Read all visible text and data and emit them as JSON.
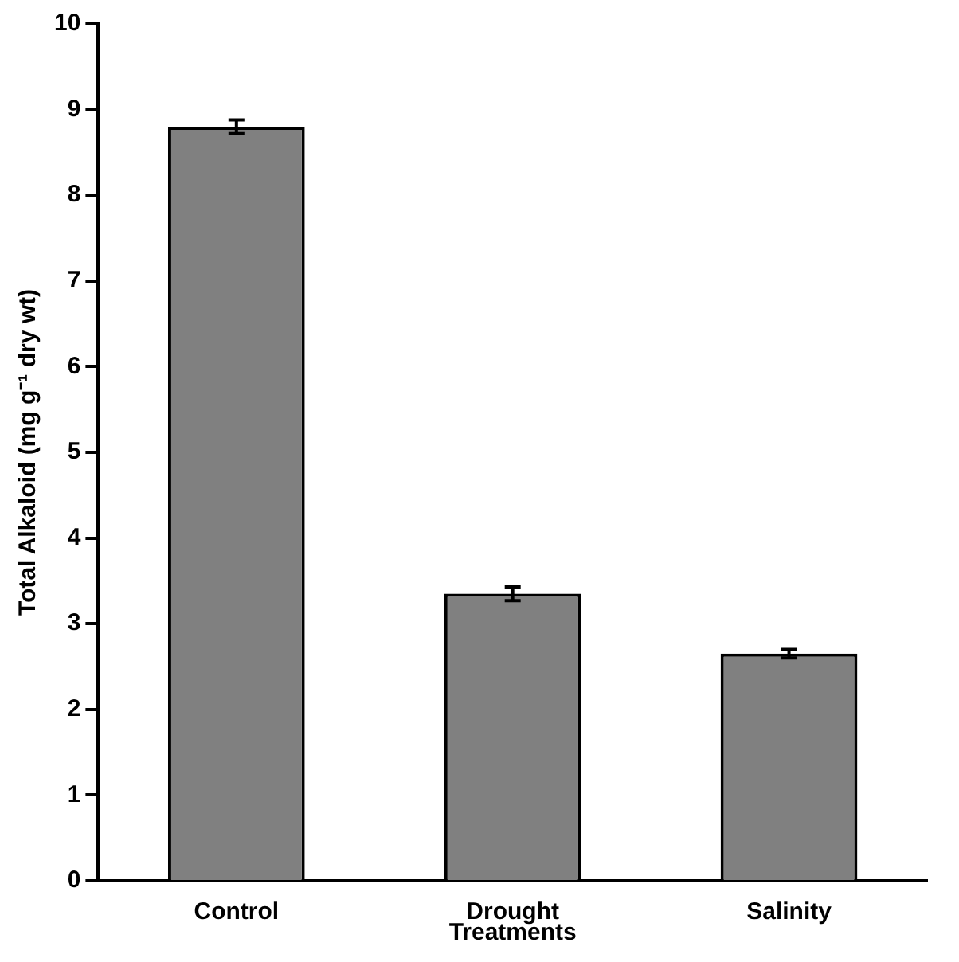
{
  "chart_data": {
    "type": "bar",
    "xlabel": "Treatments",
    "ylabel": "Total Alkaloid (mg g⁻¹ dry wt)",
    "categories": [
      "Control",
      "Drought",
      "Salinity"
    ],
    "values": [
      8.8,
      3.35,
      2.65
    ],
    "errors": [
      0.08,
      0.08,
      0.05
    ],
    "color": "#808080",
    "ylim": [
      0,
      10
    ],
    "yticks": [
      0,
      1,
      2,
      3,
      4,
      5,
      6,
      7,
      8,
      9,
      10
    ],
    "grid": false,
    "legend": false
  }
}
